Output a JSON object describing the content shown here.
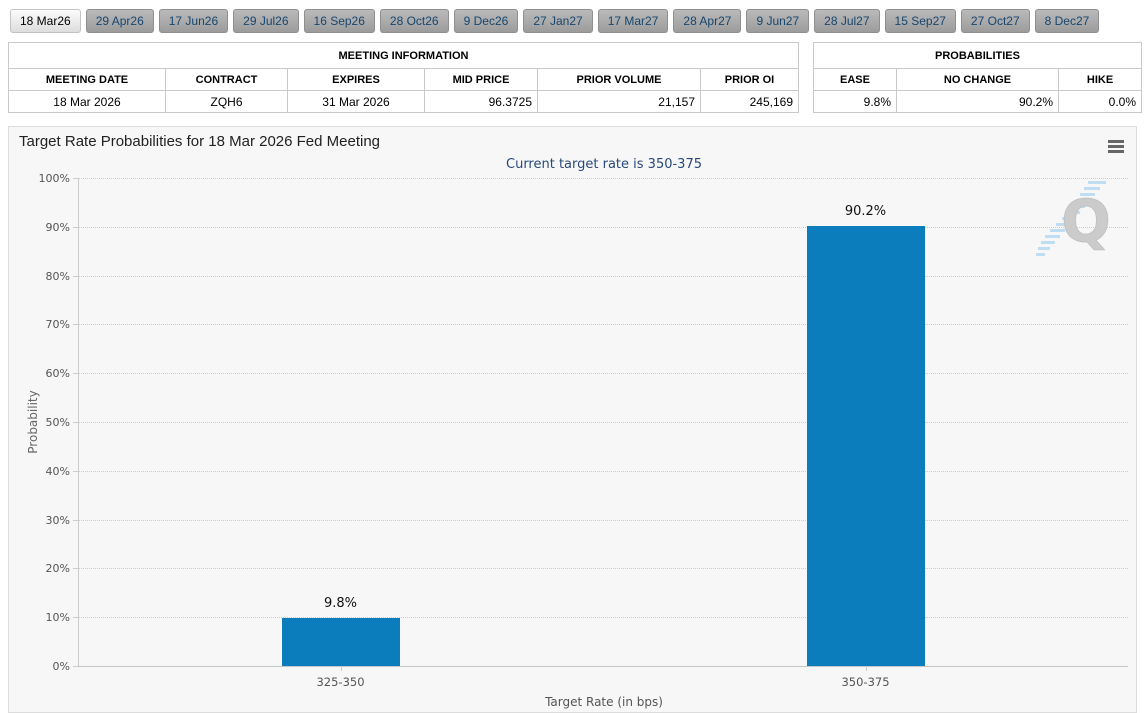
{
  "colors": {
    "bar-color": "#0b7dbd",
    "navy": "#27497a",
    "tab-text": "#17466f"
  },
  "tabs": {
    "items": [
      {
        "label": "18 Mar26",
        "active": true
      },
      {
        "label": "29 Apr26",
        "active": false
      },
      {
        "label": "17 Jun26",
        "active": false
      },
      {
        "label": "29 Jul26",
        "active": false
      },
      {
        "label": "16 Sep26",
        "active": false
      },
      {
        "label": "28 Oct26",
        "active": false
      },
      {
        "label": "9 Dec26",
        "active": false
      },
      {
        "label": "27 Jan27",
        "active": false
      },
      {
        "label": "17 Mar27",
        "active": false
      },
      {
        "label": "28 Apr27",
        "active": false
      },
      {
        "label": "9 Jun27",
        "active": false
      },
      {
        "label": "28 Jul27",
        "active": false
      },
      {
        "label": "15 Sep27",
        "active": false
      },
      {
        "label": "27 Oct27",
        "active": false
      },
      {
        "label": "8 Dec27",
        "active": false
      }
    ]
  },
  "meeting_info": {
    "title": "MEETING INFORMATION",
    "columns": [
      "MEETING DATE",
      "CONTRACT",
      "EXPIRES",
      "MID PRICE",
      "PRIOR VOLUME",
      "PRIOR OI"
    ],
    "rows": [
      [
        "18 Mar 2026",
        "ZQH6",
        "31 Mar 2026",
        "96.3725",
        "21,157",
        "245,169"
      ]
    ]
  },
  "probabilities": {
    "title": "PROBABILITIES",
    "columns": [
      "EASE",
      "NO CHANGE",
      "HIKE"
    ],
    "rows": [
      [
        "9.8%",
        "90.2%",
        "0.0%"
      ]
    ]
  },
  "chart": {
    "title": "Target Rate Probabilities for 18 Mar 2026 Fed Meeting",
    "subtitle": "Current target rate is 350-375",
    "menu_icon": "hamburger-icon",
    "watermark_letter": "Q"
  },
  "chart_data": {
    "type": "bar",
    "categories": [
      "325-350",
      "350-375"
    ],
    "values": [
      9.8,
      90.2
    ],
    "data_labels": [
      "9.8%",
      "90.2%"
    ],
    "title": "Target Rate Probabilities for 18 Mar 2026 Fed Meeting",
    "subtitle": "Current target rate is 350-375",
    "xlabel": "Target Rate (in bps)",
    "ylabel": "Probability",
    "ylim": [
      0,
      100
    ],
    "ytick_step": 10,
    "ytick_suffix": "%",
    "grid": "horizontal dotted",
    "legend": false,
    "bar_color": "#0b7dbd"
  }
}
